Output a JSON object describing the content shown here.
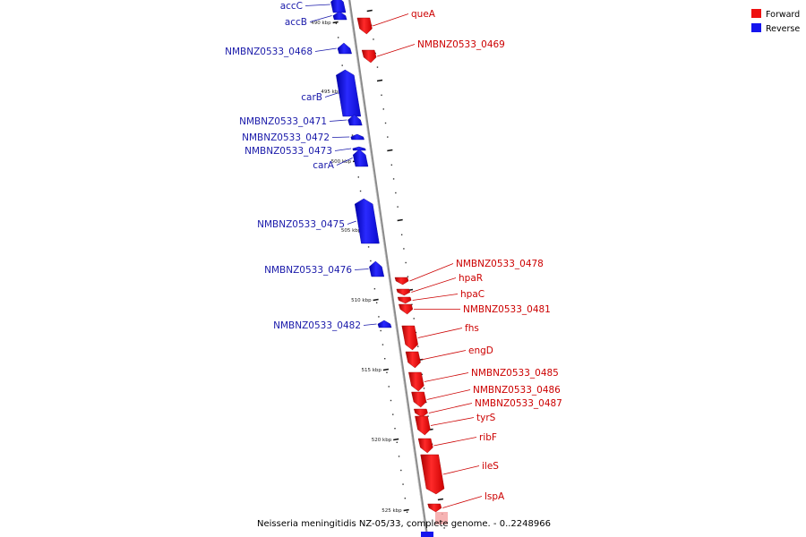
{
  "caption": "Neisseria meningitidis NZ-05/33, complete genome. - 0..2248966",
  "legend": [
    {
      "label": "Forward",
      "color": "#ee1111"
    },
    {
      "label": "Reverse",
      "color": "#1515ee"
    }
  ],
  "colors": {
    "forward": "#ee1111",
    "reverse": "#1515ee",
    "forward_label": "#cc0000",
    "reverse_label": "#1a1aaa"
  },
  "tick_labels": [
    "490 kbp",
    "495 kbp",
    "500 kbp",
    "505 kbp",
    "510 kbp",
    "515 kbp",
    "520 kbp",
    "525 kbp"
  ],
  "genes": [
    {
      "name": "accC",
      "strand": "reverse"
    },
    {
      "name": "accB",
      "strand": "reverse"
    },
    {
      "name": "queA",
      "strand": "forward"
    },
    {
      "name": "NMBNZ0533_0469",
      "strand": "forward"
    },
    {
      "name": "NMBNZ0533_0468",
      "strand": "reverse"
    },
    {
      "name": "carB",
      "strand": "reverse"
    },
    {
      "name": "NMBNZ0533_0471",
      "strand": "reverse"
    },
    {
      "name": "NMBNZ0533_0472",
      "strand": "reverse"
    },
    {
      "name": "NMBNZ0533_0473",
      "strand": "reverse"
    },
    {
      "name": "carA",
      "strand": "reverse"
    },
    {
      "name": "NMBNZ0533_0475",
      "strand": "reverse"
    },
    {
      "name": "NMBNZ0533_0476",
      "strand": "reverse"
    },
    {
      "name": "NMBNZ0533_0478",
      "strand": "forward"
    },
    {
      "name": "hpaR",
      "strand": "forward"
    },
    {
      "name": "hpaC",
      "strand": "forward"
    },
    {
      "name": "NMBNZ0533_0481",
      "strand": "forward"
    },
    {
      "name": "NMBNZ0533_0482",
      "strand": "reverse"
    },
    {
      "name": "fhs",
      "strand": "forward"
    },
    {
      "name": "engD",
      "strand": "forward"
    },
    {
      "name": "NMBNZ0533_0485",
      "strand": "forward"
    },
    {
      "name": "NMBNZ0533_0486",
      "strand": "forward"
    },
    {
      "name": "NMBNZ0533_0487",
      "strand": "forward"
    },
    {
      "name": "tyrS",
      "strand": "forward"
    },
    {
      "name": "ribF",
      "strand": "forward"
    },
    {
      "name": "ileS",
      "strand": "forward"
    },
    {
      "name": "lspA",
      "strand": "forward"
    }
  ]
}
